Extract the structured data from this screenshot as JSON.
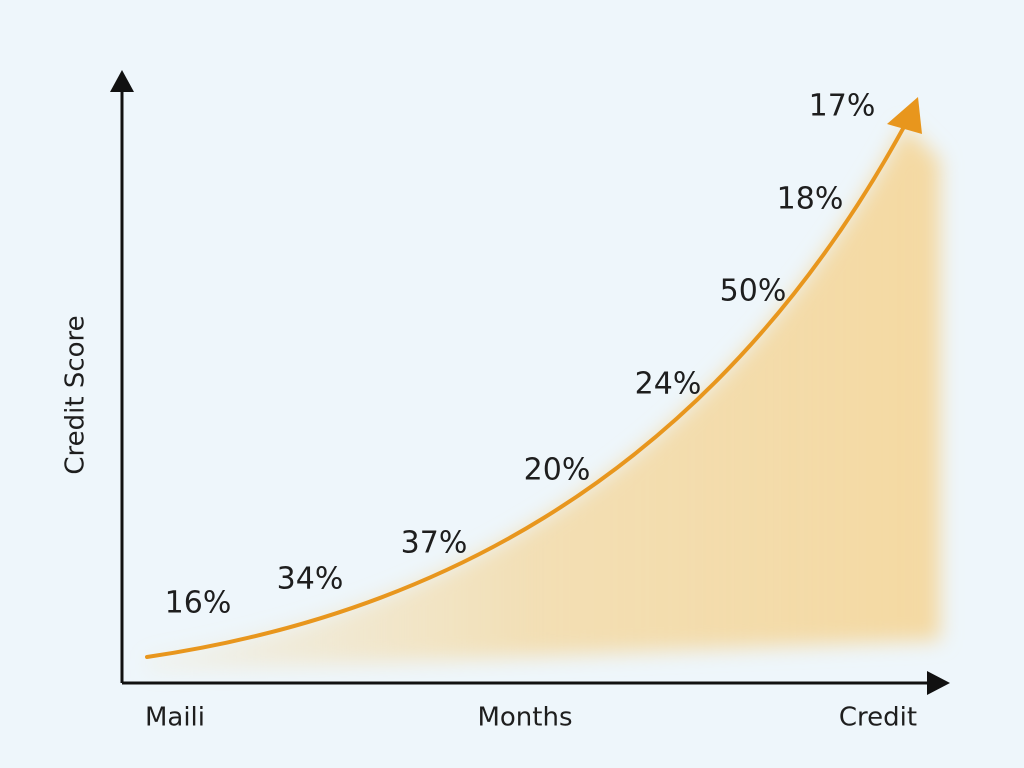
{
  "chart_data": {
    "type": "line",
    "y_label": "Credit Score",
    "x_labels": [
      "Maili",
      "Months",
      "Credit"
    ],
    "annotations": [
      "16%",
      "34%",
      "37%",
      "20%",
      "24%",
      "50%",
      "18%",
      "17%"
    ],
    "color": "#e8961d",
    "fill_color": "#f4d9a2"
  }
}
